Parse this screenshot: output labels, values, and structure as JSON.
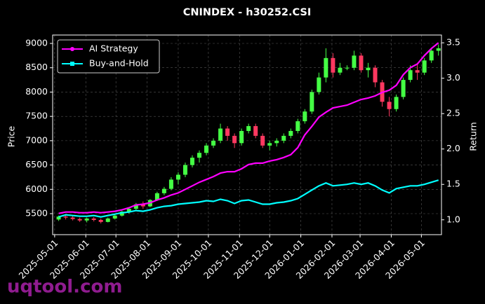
{
  "chart_data": {
    "type": "candlestick",
    "title": "CNINDEX - h30252.CSI",
    "ylabel": "Price",
    "y2label": "Return",
    "watermark": "uqtool.com",
    "x": [
      "2025-05-05",
      "2025-05-12",
      "2025-05-19",
      "2025-05-26",
      "2025-06-02",
      "2025-06-09",
      "2025-06-16",
      "2025-06-23",
      "2025-06-30",
      "2025-07-07",
      "2025-07-14",
      "2025-07-21",
      "2025-07-28",
      "2025-08-04",
      "2025-08-11",
      "2025-08-18",
      "2025-08-25",
      "2025-09-01",
      "2025-09-08",
      "2025-09-15",
      "2025-09-22",
      "2025-09-29",
      "2025-10-06",
      "2025-10-13",
      "2025-10-20",
      "2025-10-27",
      "2025-11-03",
      "2025-11-10",
      "2025-11-17",
      "2025-11-24",
      "2025-12-01",
      "2025-12-08",
      "2025-12-15",
      "2025-12-22",
      "2025-12-29",
      "2026-01-05",
      "2026-01-12",
      "2026-01-19",
      "2026-01-26",
      "2026-02-02",
      "2026-02-09",
      "2026-02-16",
      "2026-02-23",
      "2026-03-02",
      "2026-03-09",
      "2026-03-16",
      "2026-03-23",
      "2026-03-30",
      "2026-04-06",
      "2026-04-13",
      "2026-04-20",
      "2026-04-27",
      "2026-05-04",
      "2026-05-11",
      "2026-05-18"
    ],
    "open": [
      5380,
      5440,
      5420,
      5390,
      5360,
      5400,
      5370,
      5330,
      5400,
      5460,
      5540,
      5600,
      5690,
      5650,
      5780,
      5920,
      6010,
      6200,
      6300,
      6500,
      6650,
      6750,
      6900,
      7000,
      7250,
      7100,
      6950,
      7200,
      7300,
      7100,
      6900,
      6950,
      7000,
      7100,
      7200,
      7400,
      7600,
      8000,
      8300,
      8700,
      8400,
      8500,
      8500,
      8750,
      8450,
      8500,
      8200,
      7800,
      7650,
      7900,
      8250,
      8450,
      8400,
      8650,
      8850
    ],
    "high": [
      5460,
      5480,
      5450,
      5420,
      5420,
      5430,
      5400,
      5420,
      5480,
      5560,
      5620,
      5720,
      5750,
      5800,
      5950,
      6050,
      6250,
      6350,
      6550,
      6700,
      6800,
      6950,
      7050,
      7350,
      7300,
      7150,
      7250,
      7350,
      7350,
      7150,
      7000,
      7050,
      7150,
      7250,
      7450,
      7650,
      8050,
      8400,
      8900,
      8800,
      8600,
      8550,
      8850,
      8800,
      8600,
      8550,
      8250,
      7900,
      7950,
      8300,
      8550,
      8600,
      8700,
      8900,
      8980
    ],
    "low": [
      5350,
      5380,
      5360,
      5330,
      5320,
      5340,
      5300,
      5320,
      5380,
      5440,
      5500,
      5580,
      5600,
      5630,
      5760,
      5880,
      5980,
      6100,
      6250,
      6450,
      6550,
      6700,
      6850,
      6950,
      7000,
      6850,
      6900,
      7150,
      7050,
      6850,
      6800,
      6880,
      6950,
      7050,
      7150,
      7350,
      7550,
      7950,
      8200,
      8300,
      8350,
      8450,
      8450,
      8400,
      8300,
      8100,
      7700,
      7500,
      7600,
      7850,
      8200,
      8250,
      8350,
      8600,
      8750
    ],
    "close": [
      5440,
      5420,
      5390,
      5360,
      5400,
      5370,
      5330,
      5400,
      5460,
      5540,
      5600,
      5690,
      5650,
      5780,
      5920,
      6010,
      6200,
      6300,
      6500,
      6650,
      6750,
      6900,
      7000,
      7250,
      7100,
      6950,
      7200,
      7300,
      7100,
      6900,
      6950,
      7000,
      7100,
      7200,
      7400,
      7600,
      8000,
      8300,
      8700,
      8400,
      8500,
      8500,
      8750,
      8450,
      8500,
      8200,
      7800,
      7650,
      7900,
      8250,
      8450,
      8400,
      8650,
      8850,
      8900
    ],
    "up_color": "#44ff44",
    "down_color": "#ff3860",
    "series": [
      {
        "name": "AI Strategy",
        "color": "#ff00ff",
        "axis": "y2",
        "values": [
          1.09,
          1.11,
          1.11,
          1.1,
          1.1,
          1.11,
          1.1,
          1.11,
          1.12,
          1.14,
          1.17,
          1.21,
          1.22,
          1.24,
          1.28,
          1.31,
          1.35,
          1.38,
          1.43,
          1.48,
          1.53,
          1.57,
          1.61,
          1.66,
          1.68,
          1.68,
          1.72,
          1.78,
          1.8,
          1.8,
          1.83,
          1.85,
          1.88,
          1.92,
          2.02,
          2.2,
          2.32,
          2.45,
          2.52,
          2.58,
          2.6,
          2.62,
          2.66,
          2.7,
          2.72,
          2.75,
          2.8,
          2.83,
          2.9,
          3.05,
          3.15,
          3.2,
          3.32,
          3.42,
          3.5
        ]
      },
      {
        "name": "Buy-and-Hold",
        "color": "#00ffff",
        "axis": "y2",
        "values": [
          1.04,
          1.07,
          1.06,
          1.05,
          1.05,
          1.06,
          1.04,
          1.06,
          1.08,
          1.1,
          1.11,
          1.13,
          1.12,
          1.14,
          1.17,
          1.19,
          1.2,
          1.22,
          1.23,
          1.24,
          1.25,
          1.27,
          1.26,
          1.29,
          1.27,
          1.23,
          1.27,
          1.28,
          1.25,
          1.22,
          1.22,
          1.24,
          1.25,
          1.27,
          1.3,
          1.36,
          1.42,
          1.48,
          1.52,
          1.48,
          1.49,
          1.5,
          1.52,
          1.5,
          1.52,
          1.48,
          1.42,
          1.38,
          1.44,
          1.46,
          1.48,
          1.48,
          1.5,
          1.53,
          1.56
        ]
      }
    ],
    "xlim": [
      "2025-04-29",
      "2026-05-21"
    ],
    "xticks": [
      "2025-05-01",
      "2025-06-01",
      "2025-07-01",
      "2025-08-01",
      "2025-09-01",
      "2025-10-01",
      "2025-11-01",
      "2025-12-01",
      "2026-01-01",
      "2026-02-01",
      "2026-03-01",
      "2026-04-01",
      "2026-05-01"
    ],
    "ylim": [
      5068,
      9173
    ],
    "yticks": [
      5500,
      6000,
      6500,
      7000,
      7500,
      8000,
      8500,
      9000
    ],
    "y2lim": [
      0.79,
      3.61
    ],
    "y2ticks": [
      {
        "value": 1,
        "label": "1.0"
      },
      {
        "value": 1.5,
        "label": "1.5"
      },
      {
        "value": 2,
        "label": "2.0"
      },
      {
        "value": 2.5,
        "label": "2.5"
      },
      {
        "value": 3,
        "label": "3.0"
      },
      {
        "value": 3.5,
        "label": "3.5"
      }
    ],
    "grid": true,
    "legend": "upper left"
  }
}
